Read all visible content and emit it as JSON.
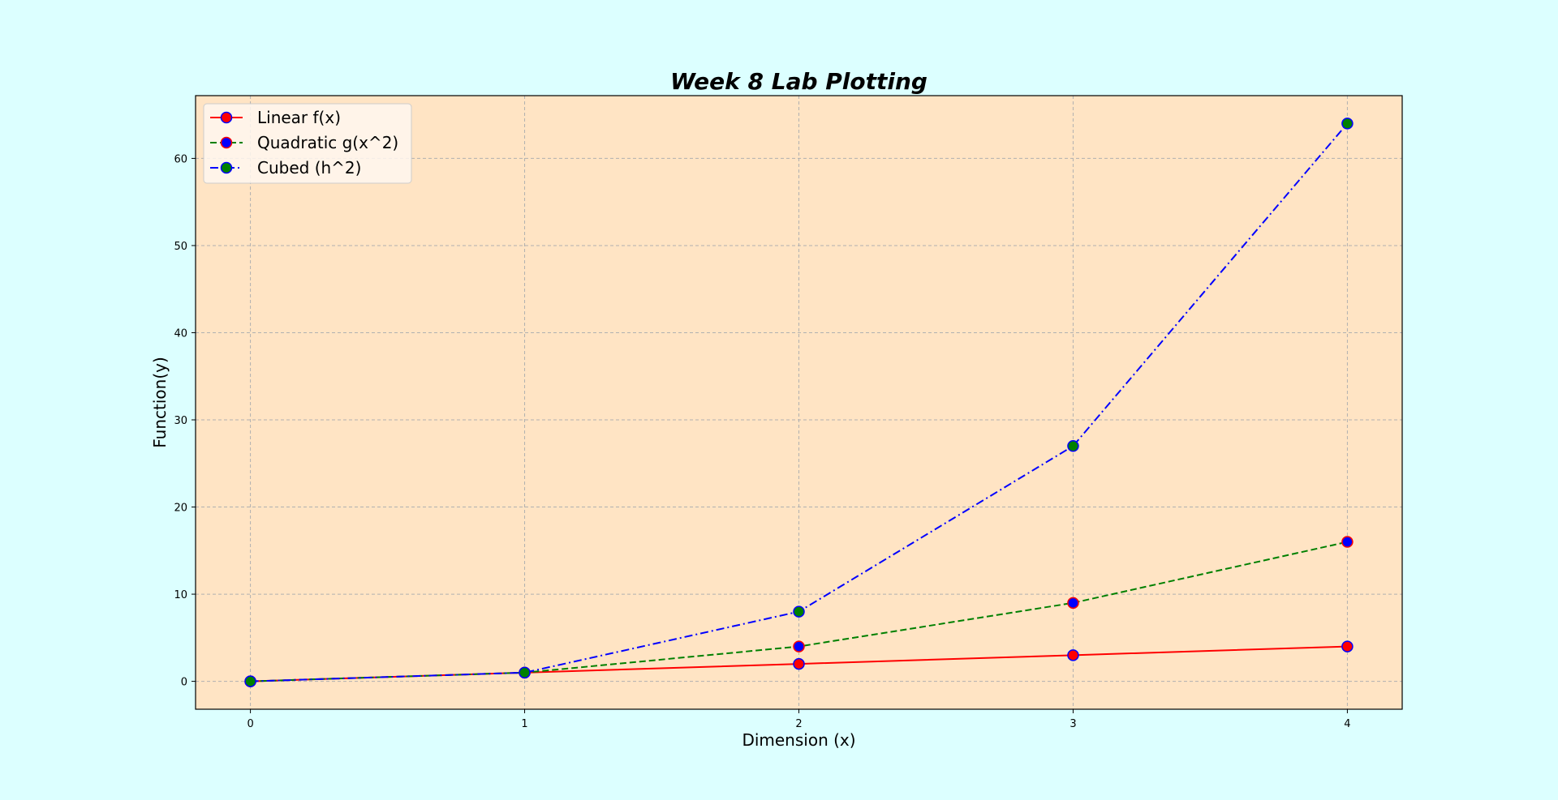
{
  "colors": {
    "figure_bg": "#dcffff",
    "plot_bg": "#ffe4c4",
    "grid": "#b0b0b0",
    "legend_bg": "#fff7f0"
  },
  "chart_data": {
    "type": "line",
    "title": "Week 8 Lab Plotting",
    "xlabel": "Dimension (x)",
    "ylabel": "Function(y)",
    "x": [
      0,
      1,
      2,
      3,
      4
    ],
    "xticks": [
      0,
      1,
      2,
      3,
      4
    ],
    "yticks": [
      0,
      10,
      20,
      30,
      40,
      50,
      60
    ],
    "xlim": [
      -0.2,
      4.2
    ],
    "ylim": [
      -3.2,
      67.2
    ],
    "grid": true,
    "legend_position": "top-left",
    "series": [
      {
        "name": "Linear f(x)",
        "values": [
          0,
          1,
          2,
          3,
          4
        ],
        "line_color": "#ff0000",
        "line_style": "solid",
        "marker_face": "#ff0000",
        "marker_edge": "#0000ff"
      },
      {
        "name": "Quadratic g(x^2)",
        "values": [
          0,
          1,
          4,
          9,
          16
        ],
        "line_color": "#008000",
        "line_style": "dashed",
        "marker_face": "#0000ff",
        "marker_edge": "#ff0000"
      },
      {
        "name": "Cubed (h^2)",
        "values": [
          0,
          1,
          8,
          27,
          64
        ],
        "line_color": "#0000ff",
        "line_style": "dashdot",
        "marker_face": "#008000",
        "marker_edge": "#0000ff"
      }
    ]
  }
}
